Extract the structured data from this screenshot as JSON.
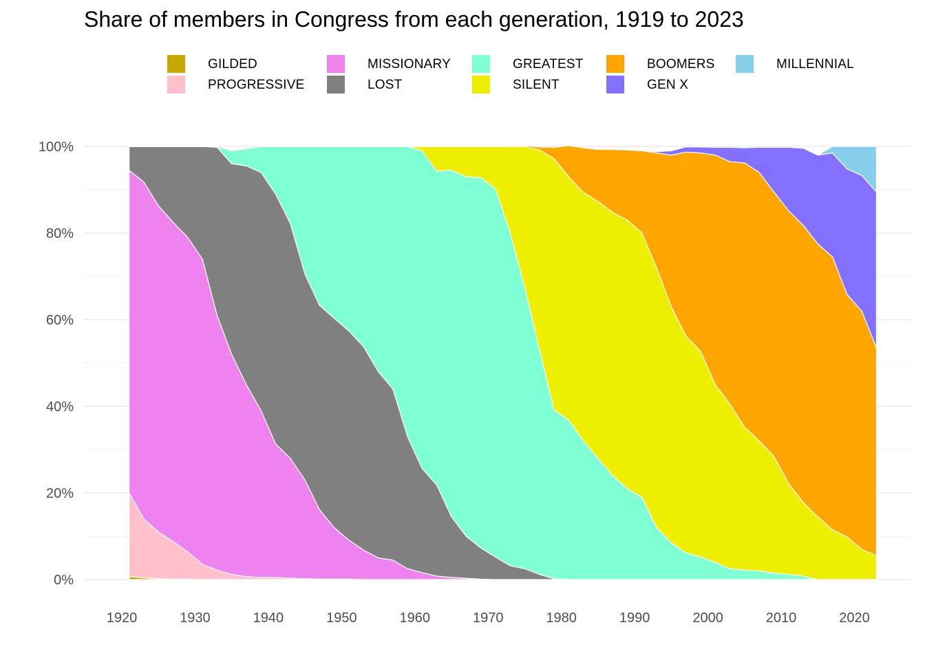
{
  "chart_data": {
    "type": "area",
    "stacked": true,
    "normalized": true,
    "title": "Share of members in Congress from each generation, 1919 to 2023",
    "xlabel": "",
    "ylabel": "",
    "xlim": [
      1921,
      2023
    ],
    "ylim": [
      0,
      1
    ],
    "x_ticks": [
      1920,
      1930,
      1940,
      1950,
      1960,
      1970,
      1980,
      1990,
      2000,
      2010,
      2020
    ],
    "x_tick_labels": [
      "1920",
      "1930",
      "1940",
      "1950",
      "1960",
      "1970",
      "1980",
      "1990",
      "2000",
      "2010",
      "2020"
    ],
    "y_ticks": [
      0,
      0.2,
      0.4,
      0.6,
      0.8,
      1.0
    ],
    "y_tick_labels": [
      "0%",
      "20%",
      "40%",
      "60%",
      "80%",
      "100%"
    ],
    "grid": true,
    "legend_position": "top",
    "legend": [
      {
        "name": "GILDED",
        "color": "#c9a800"
      },
      {
        "name": "PROGRESSIVE",
        "color": "#ffc0cb"
      },
      {
        "name": "MISSIONARY",
        "color": "#ee82ee"
      },
      {
        "name": "LOST",
        "color": "#808080"
      },
      {
        "name": "GREATEST",
        "color": "#7fffd4"
      },
      {
        "name": "SILENT",
        "color": "#eeee00"
      },
      {
        "name": "BOOMERS",
        "color": "#ffa500"
      },
      {
        "name": "GEN X",
        "color": "#8470ff"
      },
      {
        "name": "MILLENNIAL",
        "color": "#87ceeb"
      }
    ],
    "x": [
      1921,
      1923,
      1925,
      1927,
      1929,
      1931,
      1933,
      1935,
      1937,
      1939,
      1941,
      1943,
      1945,
      1947,
      1949,
      1951,
      1953,
      1955,
      1957,
      1959,
      1961,
      1963,
      1965,
      1967,
      1969,
      1971,
      1973,
      1975,
      1977,
      1979,
      1981,
      1983,
      1985,
      1987,
      1989,
      1991,
      1993,
      1995,
      1997,
      1999,
      2001,
      2003,
      2005,
      2007,
      2009,
      2011,
      2013,
      2015,
      2017,
      2019,
      2021,
      2023
    ],
    "series": [
      {
        "name": "GILDED",
        "color": "#c9a800",
        "values": [
          0.007,
          0.004,
          0.002,
          0.001,
          0.001,
          0,
          0,
          0,
          0,
          0,
          0,
          0,
          0,
          0,
          0,
          0,
          0,
          0,
          0,
          0,
          0,
          0,
          0,
          0,
          0,
          0,
          0,
          0,
          0,
          0,
          0,
          0,
          0,
          0,
          0,
          0,
          0,
          0,
          0,
          0,
          0,
          0,
          0,
          0,
          0,
          0,
          0,
          0,
          0,
          0,
          0,
          0
        ]
      },
      {
        "name": "PROGRESSIVE",
        "color": "#ffc0cb",
        "values": [
          0.193,
          0.136,
          0.108,
          0.087,
          0.063,
          0.035,
          0.022,
          0.012,
          0.007,
          0.005,
          0.005,
          0.003,
          0.002,
          0.001,
          0.001,
          0.001,
          0,
          0,
          0,
          0,
          0,
          0,
          0,
          0,
          0,
          0,
          0,
          0,
          0,
          0,
          0,
          0,
          0,
          0,
          0,
          0,
          0,
          0,
          0,
          0,
          0,
          0,
          0,
          0,
          0,
          0,
          0,
          0,
          0,
          0,
          0,
          0
        ]
      },
      {
        "name": "MISSIONARY",
        "color": "#ee82ee",
        "values": [
          0.745,
          0.778,
          0.753,
          0.737,
          0.726,
          0.705,
          0.588,
          0.508,
          0.443,
          0.385,
          0.308,
          0.277,
          0.228,
          0.16,
          0.119,
          0.09,
          0.068,
          0.05,
          0.045,
          0.025,
          0.016,
          0.008,
          0.005,
          0.003,
          0.001,
          0,
          0,
          0,
          0,
          0,
          0,
          0,
          0,
          0,
          0,
          0,
          0,
          0,
          0,
          0,
          0,
          0,
          0,
          0,
          0,
          0,
          0,
          0,
          0,
          0,
          0,
          0
        ]
      },
      {
        "name": "LOST",
        "color": "#808080",
        "values": [
          0.055,
          0.082,
          0.137,
          0.175,
          0.21,
          0.26,
          0.388,
          0.44,
          0.505,
          0.55,
          0.577,
          0.542,
          0.475,
          0.472,
          0.483,
          0.483,
          0.47,
          0.43,
          0.395,
          0.305,
          0.24,
          0.21,
          0.14,
          0.097,
          0.072,
          0.052,
          0.032,
          0.025,
          0.012,
          0.002,
          0,
          0,
          0,
          0,
          0,
          0,
          0,
          0,
          0,
          0,
          0,
          0,
          0,
          0,
          0,
          0,
          0,
          0,
          0,
          0,
          0,
          0
        ]
      },
      {
        "name": "GREATEST",
        "color": "#7fffd4",
        "values": [
          0,
          0,
          0,
          0,
          0,
          0,
          0.002,
          0.03,
          0.04,
          0.06,
          0.11,
          0.178,
          0.295,
          0.367,
          0.397,
          0.426,
          0.462,
          0.52,
          0.56,
          0.67,
          0.734,
          0.725,
          0.8,
          0.83,
          0.855,
          0.85,
          0.77,
          0.65,
          0.52,
          0.39,
          0.368,
          0.32,
          0.28,
          0.24,
          0.21,
          0.19,
          0.12,
          0.085,
          0.062,
          0.052,
          0.04,
          0.025,
          0.022,
          0.02,
          0.015,
          0.012,
          0.008,
          0,
          0,
          0,
          0,
          0
        ]
      },
      {
        "name": "SILENT",
        "color": "#eeee00",
        "values": [
          0,
          0,
          0,
          0,
          0,
          0,
          0,
          0,
          0,
          0,
          0,
          0,
          0,
          0,
          0,
          0,
          0,
          0,
          0,
          0,
          0.01,
          0.057,
          0.055,
          0.07,
          0.072,
          0.098,
          0.198,
          0.325,
          0.46,
          0.58,
          0.562,
          0.574,
          0.593,
          0.608,
          0.62,
          0.61,
          0.6,
          0.545,
          0.5,
          0.475,
          0.41,
          0.38,
          0.33,
          0.3,
          0.27,
          0.21,
          0.17,
          0.145,
          0.115,
          0.098,
          0.07,
          0.055
        ]
      },
      {
        "name": "BOOMERS",
        "color": "#ffa500",
        "values": [
          0,
          0,
          0,
          0,
          0,
          0,
          0,
          0,
          0,
          0,
          0,
          0,
          0,
          0,
          0,
          0,
          0,
          0,
          0,
          0,
          0,
          0,
          0,
          0,
          0,
          0,
          0,
          0.002,
          0.007,
          0.026,
          0.072,
          0.103,
          0.12,
          0.145,
          0.162,
          0.19,
          0.265,
          0.35,
          0.425,
          0.458,
          0.53,
          0.56,
          0.61,
          0.62,
          0.61,
          0.63,
          0.64,
          0.63,
          0.63,
          0.56,
          0.55,
          0.48
        ]
      },
      {
        "name": "GEN X",
        "color": "#8470ff",
        "values": [
          0,
          0,
          0,
          0,
          0,
          0,
          0,
          0,
          0,
          0,
          0,
          0,
          0,
          0,
          0,
          0,
          0,
          0,
          0,
          0,
          0,
          0,
          0,
          0,
          0,
          0,
          0,
          0,
          0,
          0,
          0,
          0,
          0,
          0,
          0,
          0,
          0.003,
          0.01,
          0.012,
          0.014,
          0.018,
          0.033,
          0.035,
          0.058,
          0.103,
          0.146,
          0.178,
          0.205,
          0.24,
          0.29,
          0.313,
          0.36
        ]
      },
      {
        "name": "MILLENNIAL",
        "color": "#87ceeb",
        "values": [
          0,
          0,
          0,
          0,
          0,
          0,
          0,
          0,
          0,
          0,
          0,
          0,
          0,
          0,
          0,
          0,
          0,
          0,
          0,
          0,
          0,
          0,
          0,
          0,
          0,
          0,
          0,
          0,
          0,
          0,
          0,
          0,
          0,
          0,
          0,
          0,
          0,
          0,
          0,
          0,
          0,
          0,
          0,
          0,
          0,
          0,
          0,
          0,
          0.015,
          0.052,
          0.067,
          0.105
        ]
      }
    ]
  }
}
